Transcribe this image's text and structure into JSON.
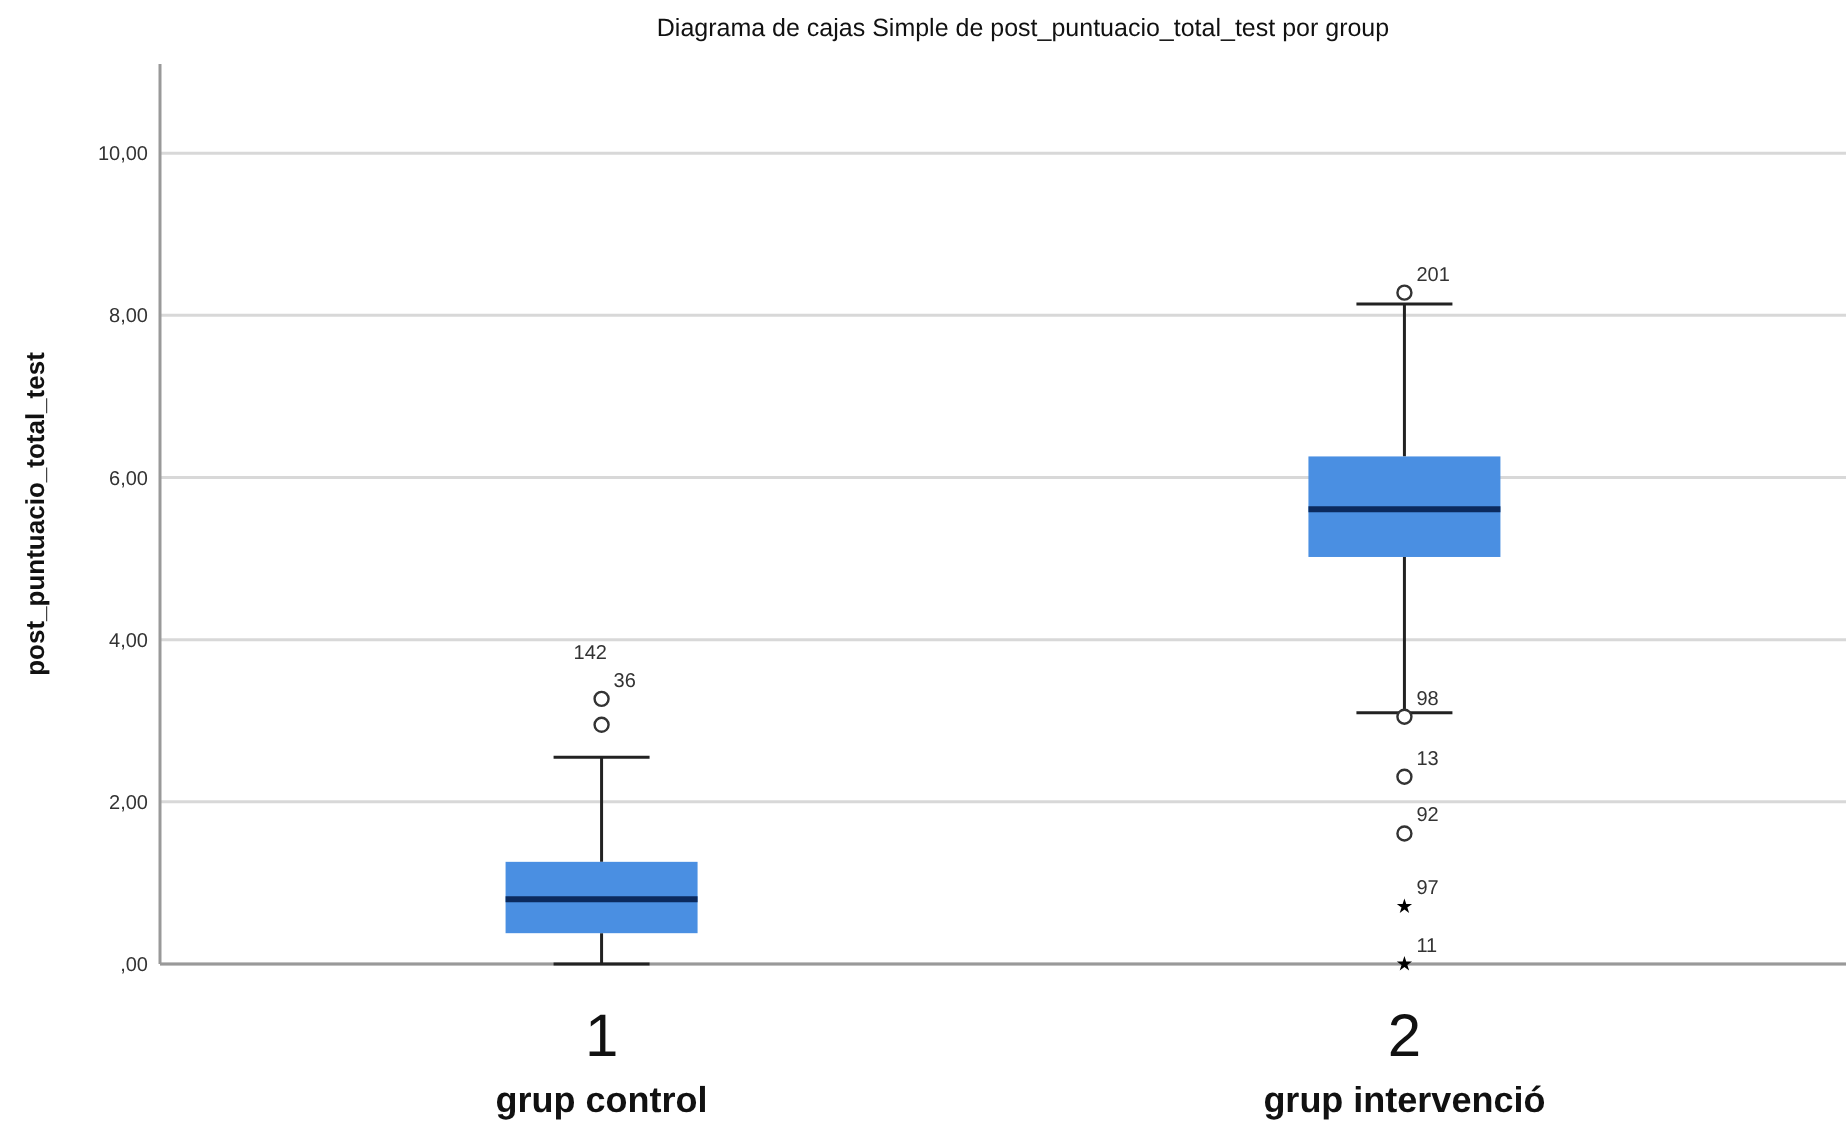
{
  "chart_data": {
    "type": "box",
    "title": "Diagrama de cajas Simple de post_puntuacio_total_test por group",
    "ylabel": "post_puntuacio_total_test",
    "categories": [
      "1",
      "2"
    ],
    "boxes": [
      {
        "low": 0,
        "q1": 0.38,
        "median": 0.8,
        "q3": 1.26,
        "high": 2.55
      },
      {
        "low": 3.1,
        "q1": 5.02,
        "median": 5.61,
        "q3": 6.26,
        "high": 8.14
      }
    ],
    "color": "#4a8fe2",
    "series": [
      {
        "type": "scatter",
        "x": [
          "1",
          "1",
          "2",
          "2",
          "2",
          "2"
        ],
        "values": [
          3.27,
          2.95,
          8.28,
          3.05,
          2.31,
          1.61
        ],
        "marker": "circle",
        "color": "#333333"
      },
      {
        "type": "scatter",
        "x": [
          "2",
          "2"
        ],
        "values": [
          0.71,
          0
        ],
        "marker": "star",
        "color": "#000000"
      }
    ],
    "ylim": [
      0,
      11.1
    ],
    "yticks": [
      {
        "value": 0,
        "label": ",00"
      },
      {
        "value": 2,
        "label": "2,00"
      },
      {
        "value": 4,
        "label": "4,00"
      },
      {
        "value": 6,
        "label": "6,00"
      },
      {
        "value": 8,
        "label": "8,00"
      },
      {
        "value": 10,
        "label": "10,00"
      }
    ],
    "grid": "y",
    "annotations": [
      "grup control",
      "grup intervenció",
      {
        "text": "36",
        "x": "1",
        "y": 3.27
      },
      {
        "text": "142",
        "x": "1",
        "y": 3.27
      },
      {
        "text": "201",
        "x": "2",
        "y": 8.28
      },
      {
        "text": "98",
        "x": "2",
        "y": 3.05
      },
      {
        "text": "13",
        "x": "2",
        "y": 2.31
      },
      {
        "text": "92",
        "x": "2",
        "y": 1.61
      },
      {
        "text": "97",
        "x": "2",
        "y": 0.71
      },
      {
        "text": "11",
        "x": "2",
        "y": 0
      }
    ]
  }
}
